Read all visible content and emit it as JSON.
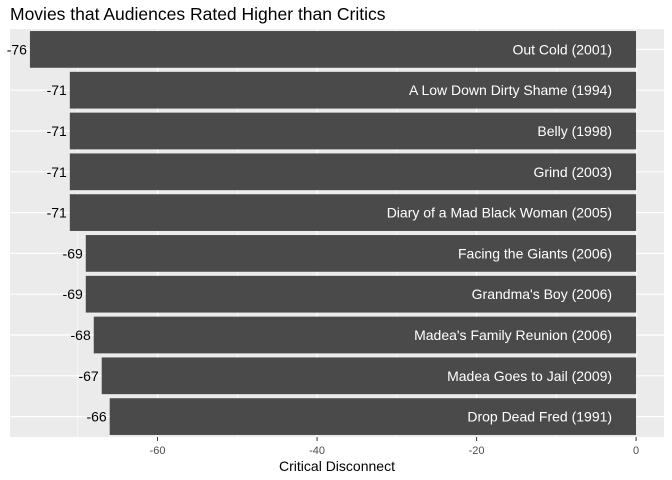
{
  "chart_data": {
    "type": "bar",
    "orientation": "horizontal",
    "title": "Movies that Audiences Rated Higher than Critics",
    "xlabel": "Critical Disconnect",
    "ylabel": "",
    "xlim": [
      -78.5,
      3.5
    ],
    "xticks": [
      -60,
      -40,
      -20,
      0
    ],
    "xtick_labels": [
      "-60",
      "-40",
      "-20",
      "0"
    ],
    "grid": true,
    "legend": "none",
    "categories": [
      "Out Cold (2001)",
      "A Low Down Dirty Shame (1994)",
      "Belly (1998)",
      "Grind (2003)",
      "Diary of a Mad Black Woman (2005)",
      "Facing the Giants (2006)",
      "Grandma's Boy (2006)",
      "Madea's Family Reunion (2006)",
      "Madea Goes to Jail (2009)",
      "Drop Dead Fred (1991)"
    ],
    "values": [
      -76,
      -71,
      -71,
      -71,
      -71,
      -69,
      -69,
      -68,
      -67,
      -66
    ],
    "value_labels": [
      "-76",
      "-71",
      "-71",
      "-71",
      "-71",
      "-69",
      "-69",
      "-68",
      "-67",
      "-66"
    ],
    "colors": {
      "panel_background": "#ebebeb",
      "grid_major": "#ffffff",
      "bar_fill": "#4a4a4a",
      "bar_label_text": "#ffffff",
      "value_label_text": "#000000",
      "tick_text": "#4d4d4d"
    }
  }
}
